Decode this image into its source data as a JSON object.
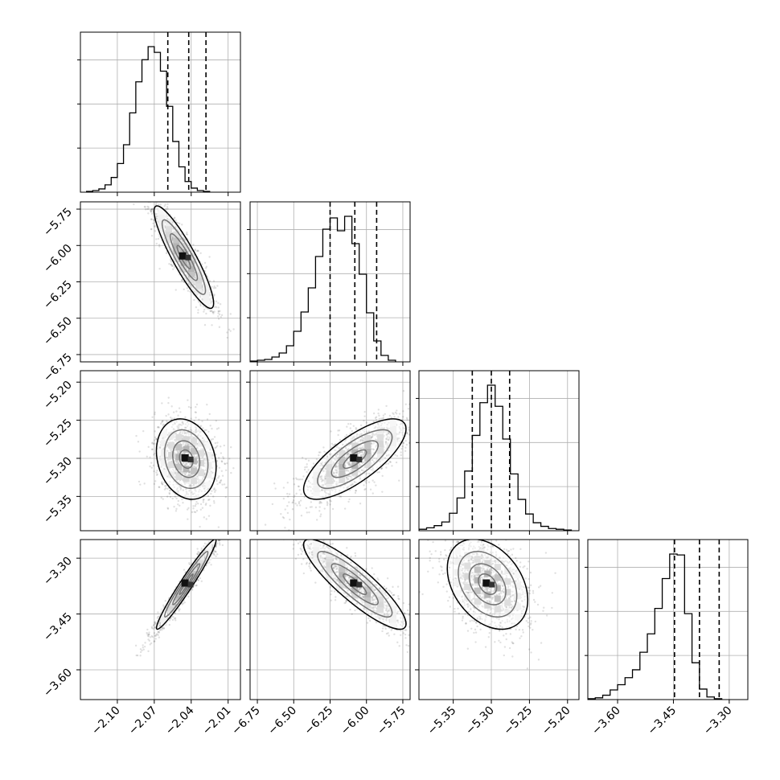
{
  "chart_data": {
    "type": "corner",
    "grid": true,
    "n_params": 4,
    "axis_ranges": [
      [
        -2.13,
        -2.0
      ],
      [
        -6.8,
        -5.7
      ],
      [
        -5.395,
        -5.185
      ],
      [
        -3.68,
        -3.25
      ]
    ],
    "tick_labels": {
      "x": [
        [
          "−2.10",
          "−2.07",
          "−2.04",
          "−2.01"
        ],
        [
          "−6.75",
          "−6.50",
          "−6.25",
          "−6.00",
          "−5.75"
        ],
        [
          "−5.35",
          "−5.30",
          "−5.25",
          "−5.20"
        ],
        [
          "−3.60",
          "−3.45",
          "−3.30"
        ]
      ],
      "y": [
        null,
        [
          "−5.75",
          "−6.00",
          "−6.25",
          "−6.50",
          "−6.75"
        ],
        [
          "−5.20",
          "−5.25",
          "−5.30",
          "−5.35"
        ],
        [
          "−3.30",
          "−3.45",
          "−3.60"
        ]
      ]
    },
    "quantiles": [
      [
        -2.059,
        -2.042,
        -2.028
      ],
      [
        -6.25,
        -6.08,
        -5.93
      ],
      [
        -5.325,
        -5.3,
        -5.276
      ],
      [
        -3.447,
        -3.38,
        -3.327
      ]
    ],
    "histograms": [
      {
        "bin_start": -2.125,
        "bin_width": 0.005,
        "counts": [
          1,
          2,
          4,
          9,
          18,
          35,
          58,
          97,
          135,
          162,
          178,
          171,
          148,
          105,
          62,
          31,
          13,
          5,
          2,
          1
        ]
      },
      {
        "bin_start": -6.8,
        "bin_width": 0.05,
        "counts": [
          1,
          2,
          3,
          6,
          11,
          20,
          38,
          62,
          92,
          131,
          165,
          179,
          163,
          181,
          147,
          109,
          61,
          26,
          8,
          2
        ]
      },
      {
        "bin_start": -5.395,
        "bin_width": 0.01,
        "counts": [
          2,
          4,
          7,
          12,
          24,
          45,
          82,
          131,
          176,
          200,
          171,
          126,
          78,
          43,
          23,
          11,
          6,
          3,
          2,
          1
        ]
      },
      {
        "bin_start": -3.68,
        "bin_width": 0.02,
        "counts": [
          1,
          2,
          5,
          11,
          17,
          25,
          34,
          54,
          75,
          104,
          138,
          166,
          165,
          98,
          42,
          12,
          3,
          1
        ]
      }
    ],
    "pairs": [
      {
        "x": 0,
        "y": 1,
        "mean": [
          -2.046,
          -6.08
        ],
        "std": [
          0.011,
          0.16
        ],
        "corr": -0.9
      },
      {
        "x": 0,
        "y": 2,
        "mean": [
          -2.044,
          -5.301
        ],
        "std": [
          0.011,
          0.024
        ],
        "corr": -0.2
      },
      {
        "x": 1,
        "y": 2,
        "mean": [
          -6.08,
          -5.301
        ],
        "std": [
          0.16,
          0.024
        ],
        "corr": 0.75
      },
      {
        "x": 0,
        "y": 3,
        "mean": [
          -2.044,
          -3.37
        ],
        "std": [
          0.011,
          0.055
        ],
        "corr": 0.97
      },
      {
        "x": 1,
        "y": 3,
        "mean": [
          -6.08,
          -3.37
        ],
        "std": [
          0.16,
          0.055
        ],
        "corr": -0.88
      },
      {
        "x": 2,
        "y": 3,
        "mean": [
          -5.305,
          -3.37
        ],
        "std": [
          0.024,
          0.055
        ],
        "corr": -0.35
      }
    ]
  }
}
